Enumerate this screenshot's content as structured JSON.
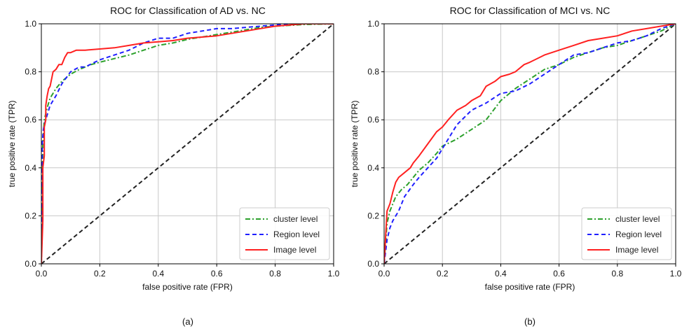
{
  "chart_data": [
    {
      "type": "line",
      "panel_caption": "(a)",
      "title": "ROC for Classification of AD vs. NC",
      "xlabel": "false positive rate (FPR)",
      "ylabel": "true positive rate (TPR)",
      "xlim": [
        0,
        1
      ],
      "ylim": [
        0,
        1
      ],
      "xticks": [
        "0.0",
        "0.2",
        "0.4",
        "0.6",
        "0.8",
        "1.0"
      ],
      "yticks": [
        "0.0",
        "0.2",
        "0.4",
        "0.6",
        "0.8",
        "1.0"
      ],
      "grid": true,
      "legend_position": "bottom-right",
      "series": [
        {
          "name": "cluster level",
          "color": "#2ca02c",
          "style": "dashdot",
          "x": [
            0,
            0.005,
            0.01,
            0.02,
            0.03,
            0.05,
            0.07,
            0.1,
            0.13,
            0.17,
            0.2,
            0.25,
            0.3,
            0.35,
            0.4,
            0.45,
            0.5,
            0.55,
            0.6,
            0.65,
            0.7,
            0.75,
            0.8,
            0.9,
            1.0
          ],
          "y": [
            0,
            0.5,
            0.6,
            0.65,
            0.69,
            0.73,
            0.76,
            0.79,
            0.81,
            0.83,
            0.84,
            0.855,
            0.87,
            0.89,
            0.91,
            0.92,
            0.935,
            0.945,
            0.955,
            0.965,
            0.975,
            0.985,
            0.99,
            0.997,
            1.0
          ]
        },
        {
          "name": "Region level",
          "color": "#1f1fff",
          "style": "dashed",
          "x": [
            0,
            0.003,
            0.007,
            0.01,
            0.015,
            0.02,
            0.03,
            0.05,
            0.07,
            0.1,
            0.13,
            0.15,
            0.2,
            0.25,
            0.3,
            0.35,
            0.4,
            0.45,
            0.5,
            0.55,
            0.6,
            0.65,
            0.7,
            0.75,
            0.8,
            0.9,
            1.0
          ],
          "y": [
            0,
            0.5,
            0.56,
            0.58,
            0.6,
            0.62,
            0.66,
            0.7,
            0.75,
            0.8,
            0.82,
            0.82,
            0.85,
            0.87,
            0.89,
            0.92,
            0.94,
            0.94,
            0.96,
            0.97,
            0.98,
            0.98,
            0.985,
            0.99,
            0.995,
            1.0,
            1.0
          ]
        },
        {
          "name": "Image level",
          "color": "#ff2020",
          "style": "solid",
          "x": [
            0,
            0.005,
            0.005,
            0.01,
            0.01,
            0.015,
            0.015,
            0.02,
            0.025,
            0.03,
            0.035,
            0.04,
            0.05,
            0.06,
            0.07,
            0.08,
            0.09,
            0.1,
            0.12,
            0.15,
            0.2,
            0.25,
            0.3,
            0.35,
            0.4,
            0.45,
            0.5,
            0.6,
            0.7,
            0.8,
            0.9,
            1.0
          ],
          "y": [
            0,
            0.18,
            0.4,
            0.45,
            0.57,
            0.6,
            0.66,
            0.7,
            0.73,
            0.74,
            0.77,
            0.8,
            0.81,
            0.83,
            0.83,
            0.86,
            0.88,
            0.88,
            0.89,
            0.89,
            0.895,
            0.9,
            0.91,
            0.92,
            0.925,
            0.93,
            0.94,
            0.95,
            0.97,
            0.99,
            1.0,
            1.0
          ]
        },
        {
          "name": "",
          "color": "#222222",
          "style": "dashed",
          "x": [
            0,
            1
          ],
          "y": [
            0,
            1
          ]
        }
      ]
    },
    {
      "type": "line",
      "panel_caption": "(b)",
      "title": "ROC for Classification of MCI vs. NC",
      "xlabel": "false positive rate (FPR)",
      "ylabel": "true positive rate (TPR)",
      "xlim": [
        0,
        1
      ],
      "ylim": [
        0,
        1
      ],
      "xticks": [
        "0.0",
        "0.2",
        "0.4",
        "0.6",
        "0.8",
        "1.0"
      ],
      "yticks": [
        "0.0",
        "0.2",
        "0.4",
        "0.6",
        "0.8",
        "1.0"
      ],
      "grid": true,
      "legend_position": "bottom-right",
      "series": [
        {
          "name": "cluster level",
          "color": "#2ca02c",
          "style": "dashdot",
          "x": [
            0,
            0.01,
            0.02,
            0.04,
            0.06,
            0.08,
            0.1,
            0.12,
            0.15,
            0.18,
            0.2,
            0.25,
            0.3,
            0.35,
            0.4,
            0.45,
            0.5,
            0.55,
            0.6,
            0.65,
            0.7,
            0.75,
            0.8,
            0.85,
            0.9,
            0.95,
            1.0
          ],
          "y": [
            0,
            0.17,
            0.22,
            0.28,
            0.31,
            0.33,
            0.36,
            0.39,
            0.42,
            0.46,
            0.49,
            0.52,
            0.56,
            0.6,
            0.68,
            0.73,
            0.77,
            0.81,
            0.83,
            0.86,
            0.88,
            0.9,
            0.91,
            0.93,
            0.95,
            0.97,
            1.0
          ]
        },
        {
          "name": "Region level",
          "color": "#1f1fff",
          "style": "dashed",
          "x": [
            0,
            0.01,
            0.02,
            0.03,
            0.05,
            0.07,
            0.1,
            0.12,
            0.15,
            0.18,
            0.2,
            0.22,
            0.25,
            0.3,
            0.35,
            0.4,
            0.45,
            0.5,
            0.55,
            0.6,
            0.65,
            0.7,
            0.75,
            0.8,
            0.85,
            0.9,
            0.95,
            1.0
          ],
          "y": [
            0,
            0.1,
            0.15,
            0.18,
            0.22,
            0.28,
            0.33,
            0.36,
            0.4,
            0.44,
            0.48,
            0.52,
            0.58,
            0.64,
            0.67,
            0.71,
            0.72,
            0.75,
            0.79,
            0.83,
            0.87,
            0.88,
            0.9,
            0.92,
            0.93,
            0.95,
            0.98,
            1.0
          ]
        },
        {
          "name": "Image level",
          "color": "#ff2020",
          "style": "solid",
          "x": [
            0,
            0.01,
            0.02,
            0.03,
            0.04,
            0.05,
            0.07,
            0.09,
            0.1,
            0.12,
            0.15,
            0.18,
            0.2,
            0.22,
            0.25,
            0.28,
            0.3,
            0.33,
            0.35,
            0.38,
            0.4,
            0.43,
            0.45,
            0.48,
            0.5,
            0.55,
            0.6,
            0.65,
            0.7,
            0.75,
            0.8,
            0.85,
            0.9,
            0.95,
            1.0
          ],
          "y": [
            0,
            0.22,
            0.25,
            0.3,
            0.34,
            0.36,
            0.38,
            0.4,
            0.42,
            0.45,
            0.5,
            0.55,
            0.57,
            0.6,
            0.64,
            0.66,
            0.68,
            0.7,
            0.74,
            0.76,
            0.78,
            0.79,
            0.8,
            0.83,
            0.84,
            0.87,
            0.89,
            0.91,
            0.93,
            0.94,
            0.95,
            0.97,
            0.98,
            0.99,
            1.0
          ]
        },
        {
          "name": "",
          "color": "#222222",
          "style": "dashed",
          "x": [
            0,
            1
          ],
          "y": [
            0,
            1
          ]
        }
      ]
    }
  ]
}
